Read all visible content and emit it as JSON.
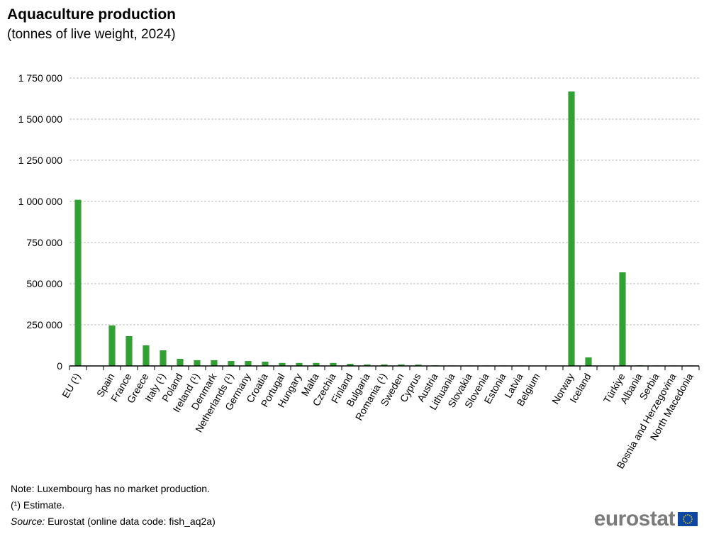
{
  "chart_data": {
    "type": "bar",
    "title": "Aquaculture production",
    "subtitle": "(tonnes of live weight, 2024)",
    "xlabel": "",
    "ylabel": "",
    "ylim": [
      0,
      1750000
    ],
    "yticks": [
      0,
      250000,
      500000,
      750000,
      1000000,
      1250000,
      1500000,
      1750000
    ],
    "ytick_labels": [
      "0",
      "250 000",
      "500 000",
      "750 000",
      "1 000 000",
      "1 250 000",
      "1 500 000",
      "1 750 000"
    ],
    "grid": true,
    "bar_color": "#33a033",
    "categories": [
      "EU (¹)",
      "",
      "Spain",
      "France",
      "Greece",
      "Italy  (¹)",
      "Poland",
      "Ireland  (¹)",
      "Denmark",
      "Netherlands  (¹)",
      "Germany",
      "Croatia",
      "Portugal",
      "Hungary",
      "Malta",
      "Czechia",
      "Finland",
      "Bulgaria",
      "Romania  (¹)",
      "Sweden",
      "Cyprus",
      "Austria",
      "Lithuania",
      "Slovakia",
      "Slovenia",
      "Estonia",
      "Latvia",
      "Belgium",
      "",
      "Norway",
      "Iceland",
      "",
      "Türkiye",
      "Albania",
      "Serbia",
      "Bosnia and Herzegovina",
      "North Macedonia"
    ],
    "values": [
      1010000,
      null,
      246000,
      181000,
      125000,
      95000,
      43000,
      35000,
      35000,
      30000,
      30000,
      26000,
      18000,
      18000,
      18000,
      18000,
      13000,
      9000,
      9000,
      9000,
      8000,
      4000,
      3000,
      3000,
      3000,
      3000,
      3000,
      1000,
      null,
      1668000,
      52000,
      null,
      569000,
      4000,
      3000,
      3000,
      3000
    ]
  },
  "notes": {
    "note": "Note: Luxembourg has no market production.",
    "estimate": "(¹) Estimate.",
    "source_label": "Source:",
    "source_text": " Eurostat (online data code: fish_aq2a)"
  },
  "logo": {
    "text": "eurostat"
  }
}
